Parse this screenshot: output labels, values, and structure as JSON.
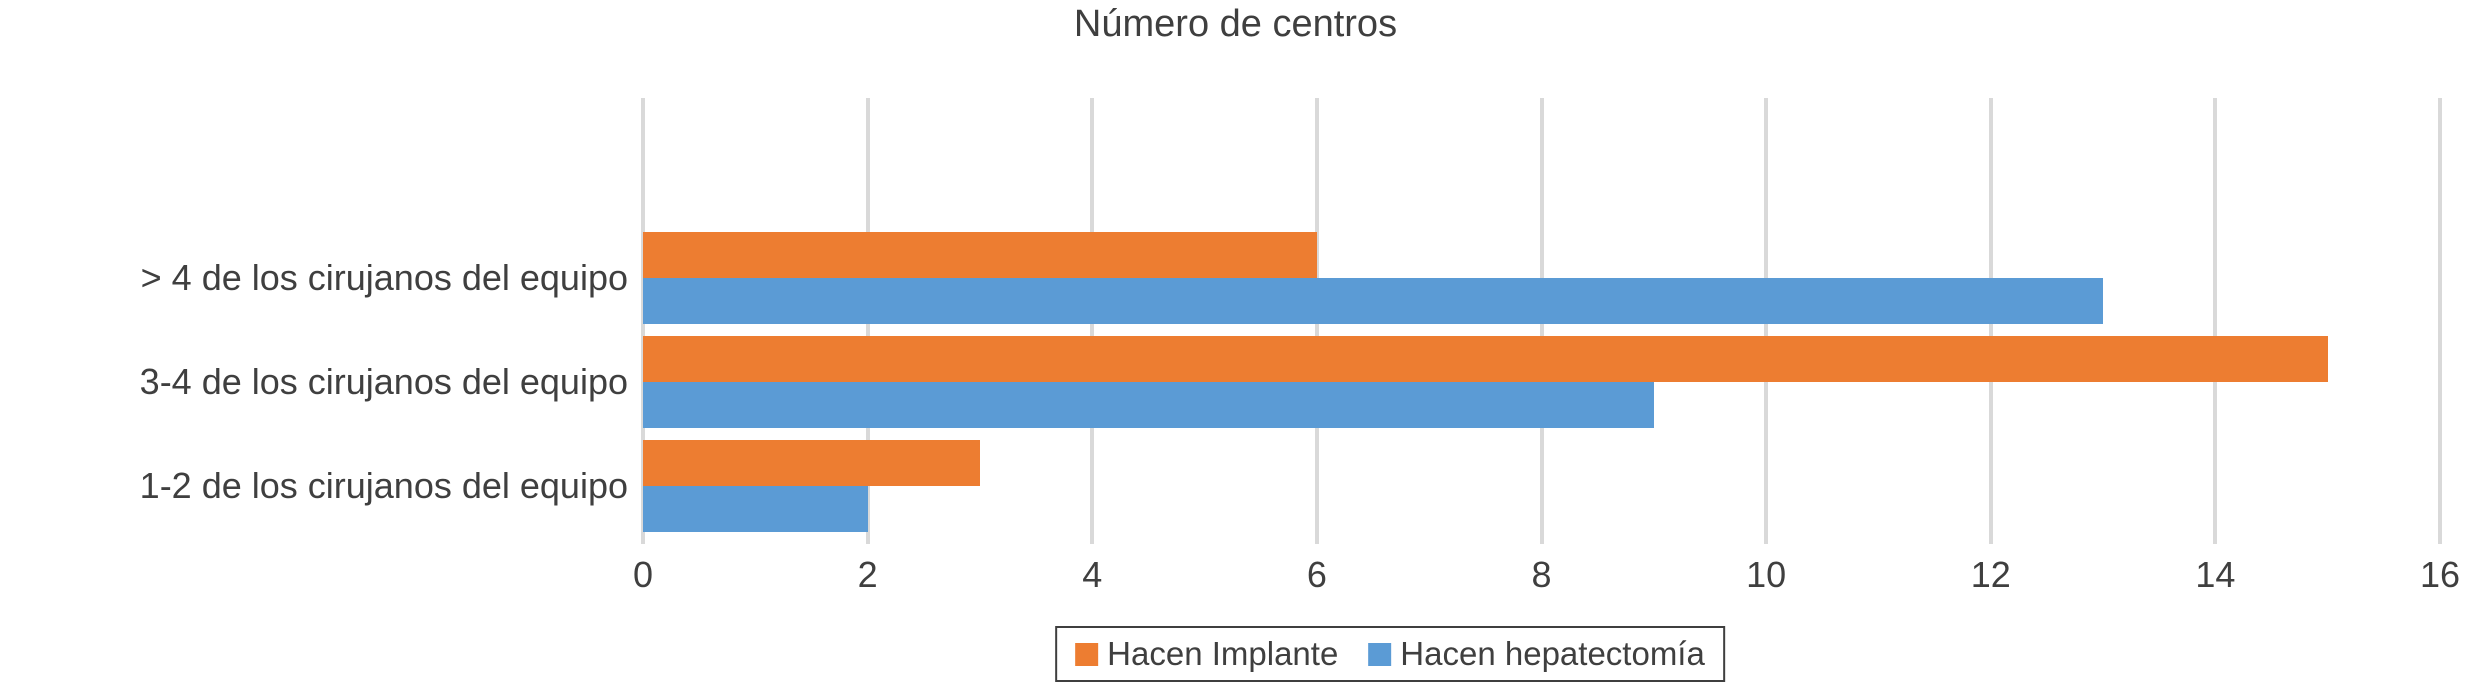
{
  "chart_data": {
    "type": "bar",
    "orientation": "horizontal",
    "title": "Número de centros",
    "categories": [
      "> 4 de los cirujanos del equipo",
      "3-4 de los cirujanos del equipo",
      "1-2 de los cirujanos del equipo"
    ],
    "series": [
      {
        "name": "Hacen Implante",
        "color": "#ED7D31",
        "values": [
          6,
          15,
          3
        ]
      },
      {
        "name": "Hacen hepatectomía",
        "color": "#5B9BD5",
        "values": [
          13,
          9,
          2
        ]
      }
    ],
    "xlim": [
      0,
      16
    ],
    "xticks": [
      0,
      2,
      4,
      6,
      8,
      10,
      12,
      14,
      16
    ],
    "grid": true,
    "legend_position": "bottom-center",
    "colors": {
      "text": "#3F3F3F",
      "gridline": "#D9D9D9",
      "legend_border": "#3F3F3F",
      "background": "#FFFFFF"
    }
  }
}
